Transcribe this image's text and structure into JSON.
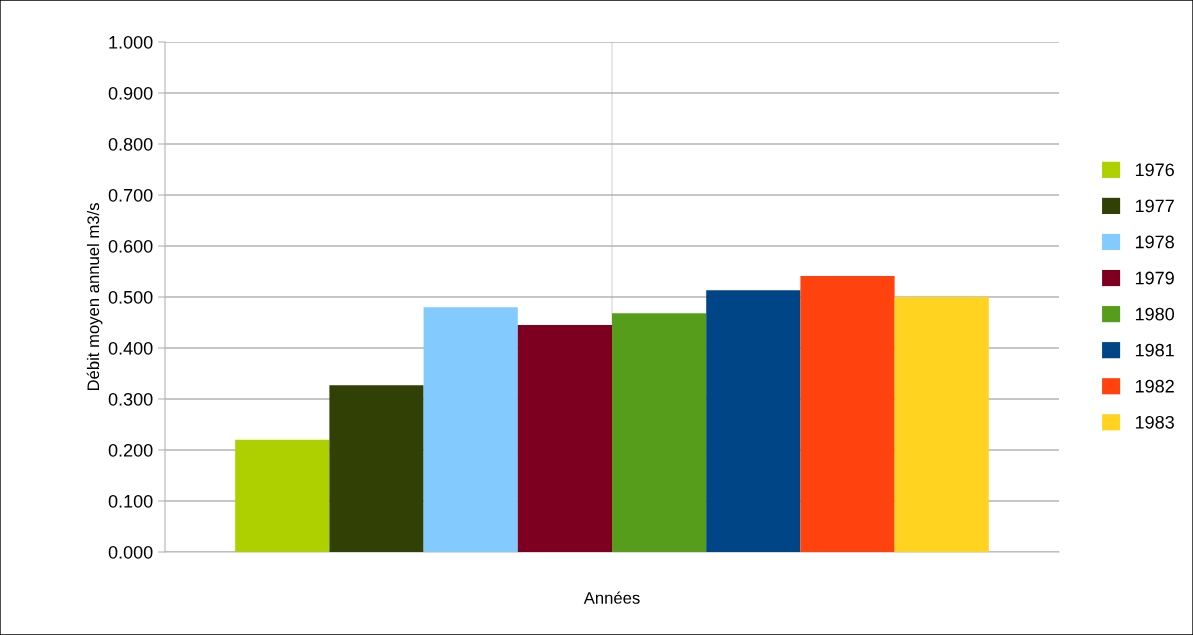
{
  "chart_data": {
    "type": "bar",
    "xlabel": "Années",
    "ylabel": "Débit moyen annuel m3/s",
    "categories": [
      null
    ],
    "series": [
      {
        "name": "1976",
        "color": "#afd000",
        "values": [
          0.22
        ]
      },
      {
        "name": "1977",
        "color": "#314004",
        "values": [
          0.327
        ]
      },
      {
        "name": "1978",
        "color": "#83caff",
        "values": [
          0.48
        ]
      },
      {
        "name": "1979",
        "color": "#7e0021",
        "values": [
          0.445
        ]
      },
      {
        "name": "1980",
        "color": "#579d1c",
        "values": [
          0.468
        ]
      },
      {
        "name": "1981",
        "color": "#004586",
        "values": [
          0.513
        ]
      },
      {
        "name": "1982",
        "color": "#ff420e",
        "values": [
          0.541
        ]
      },
      {
        "name": "1983",
        "color": "#ffd320",
        "values": [
          0.5
        ]
      }
    ],
    "ylim": [
      0,
      1
    ],
    "yticks": [
      {
        "value": 0,
        "label": "0.000"
      },
      {
        "value": 0.1,
        "label": "0.100"
      },
      {
        "value": 0.2,
        "label": "0.200"
      },
      {
        "value": 0.3,
        "label": "0.300"
      },
      {
        "value": 0.4,
        "label": "0.400"
      },
      {
        "value": 0.5,
        "label": "0.500"
      },
      {
        "value": 0.6,
        "label": "0.600"
      },
      {
        "value": 0.7,
        "label": "0.700"
      },
      {
        "value": 0.8,
        "label": "0.800"
      },
      {
        "value": 0.9,
        "label": "0.900"
      },
      {
        "value": 1,
        "label": "1.000"
      }
    ],
    "grid": true,
    "legend": "right"
  }
}
